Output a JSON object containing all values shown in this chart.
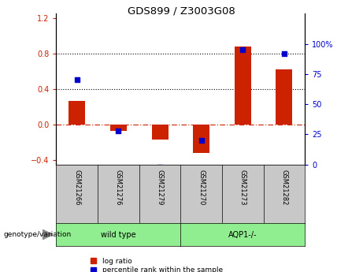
{
  "title": "GDS899 / Z3003G08",
  "samples": [
    "GSM21266",
    "GSM21276",
    "GSM21279",
    "GSM21270",
    "GSM21273",
    "GSM21282"
  ],
  "log_ratio": [
    0.27,
    -0.07,
    -0.17,
    -0.32,
    0.88,
    0.62
  ],
  "percentile_rank": [
    70,
    28,
    -2,
    20,
    95,
    92
  ],
  "bar_color_red": "#CC2200",
  "dot_color_blue": "#0000CC",
  "ylim_left": [
    -0.45,
    1.25
  ],
  "ylim_right": [
    0,
    125
  ],
  "yticks_left": [
    -0.4,
    0.0,
    0.4,
    0.8,
    1.2
  ],
  "yticks_right": [
    0,
    25,
    50,
    75,
    100
  ],
  "hlines": [
    0.4,
    0.8
  ],
  "zero_line_color": "#CC2200",
  "legend_red_label": "log ratio",
  "legend_blue_label": "percentile rank within the sample",
  "genotype_label": "genotype/variation",
  "wt_label": "wild type",
  "aqp_label": "AQP1-/-",
  "sample_box_color": "#C8C8C8",
  "group_box_color": "#90EE90",
  "bar_width": 0.4
}
